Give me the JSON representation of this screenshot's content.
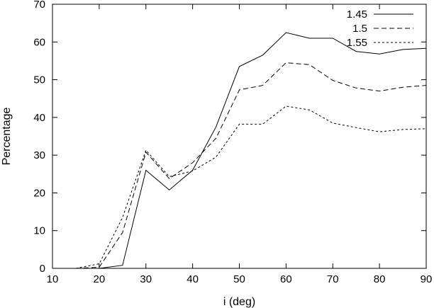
{
  "chart_data": {
    "type": "line",
    "title": "",
    "xlabel": "i (deg)",
    "ylabel": "Percentage",
    "xlim": [
      10,
      90
    ],
    "ylim": [
      0,
      70
    ],
    "xticks": [
      10,
      20,
      30,
      40,
      50,
      60,
      70,
      80,
      90
    ],
    "yticks": [
      0,
      10,
      20,
      30,
      40,
      50,
      60,
      70
    ],
    "grid": false,
    "legend_position": "top-right",
    "x": [
      15,
      20,
      25,
      30,
      35,
      40,
      45,
      50,
      55,
      60,
      65,
      70,
      75,
      80,
      85,
      90
    ],
    "series": [
      {
        "name": "1.45",
        "dash": "solid",
        "values": [
          0,
          0,
          0.8,
          26,
          20.8,
          26,
          37.5,
          53.5,
          56.5,
          62.5,
          61,
          61,
          57.5,
          56.8,
          58,
          58.3
        ]
      },
      {
        "name": "1.5",
        "dash": "dashed",
        "values": [
          0,
          0.3,
          9.5,
          30.8,
          23.8,
          28,
          34.5,
          47.3,
          48.5,
          54.5,
          54,
          49.8,
          47.8,
          47,
          48,
          48.5
        ]
      },
      {
        "name": "1.55",
        "dash": "dotted",
        "values": [
          0,
          1.2,
          13.5,
          31.3,
          24.3,
          25.8,
          29.5,
          38.2,
          38.2,
          43,
          42,
          38.5,
          37.3,
          36.2,
          36.8,
          37
        ]
      }
    ]
  }
}
